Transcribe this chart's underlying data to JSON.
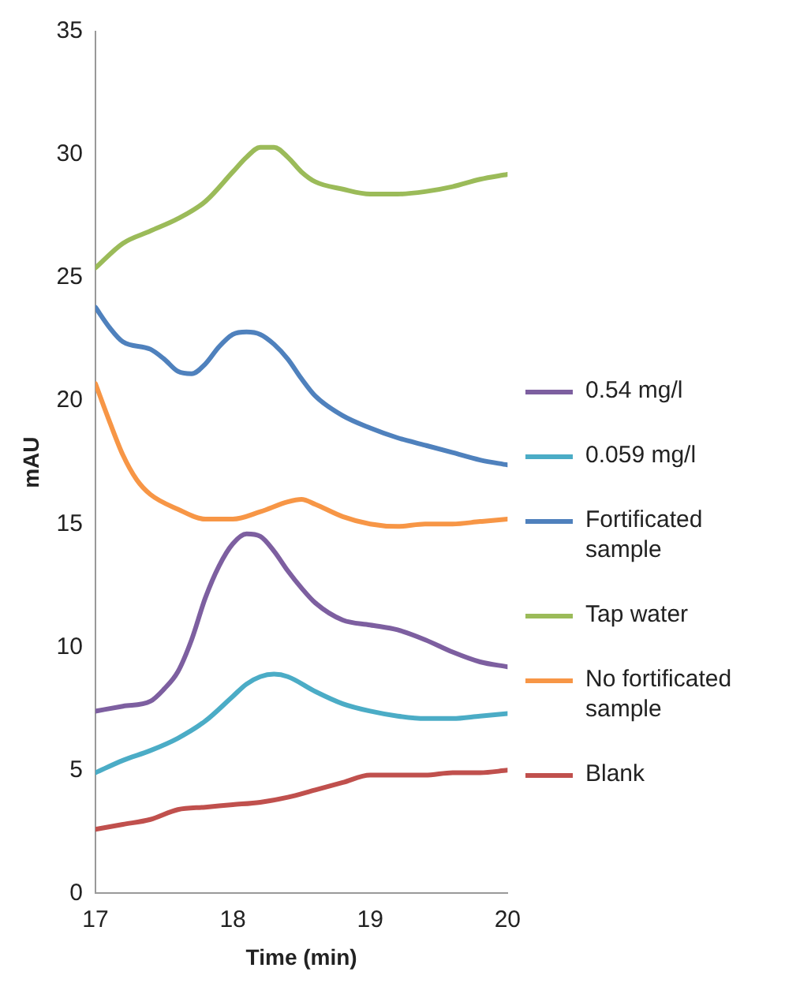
{
  "chart_data": {
    "type": "line",
    "xlabel": "Time (min)",
    "ylabel": "mAU",
    "xlim": [
      17,
      20
    ],
    "xticks": [
      17,
      18,
      19,
      20
    ],
    "ylim": [
      0,
      35
    ],
    "yticks": [
      0,
      5,
      10,
      15,
      20,
      25,
      30,
      35
    ],
    "grid": false,
    "legend": "right",
    "marker": "none",
    "line_style": "solid",
    "series": [
      {
        "name": "0.54 mg/l",
        "color": "#7d5fa0",
        "x": [
          17,
          17.2,
          17.4,
          17.5,
          17.6,
          17.7,
          17.8,
          17.9,
          18,
          18.1,
          18.2,
          18.3,
          18.4,
          18.5,
          18.6,
          18.8,
          19,
          19.2,
          19.4,
          19.6,
          19.8,
          20
        ],
        "values": [
          7.4,
          7.6,
          7.8,
          8.3,
          9,
          10.3,
          12,
          13.3,
          14.2,
          14.6,
          14.5,
          13.9,
          13.1,
          12.4,
          11.8,
          11.1,
          10.9,
          10.7,
          10.3,
          9.8,
          9.4,
          9.2
        ]
      },
      {
        "name": "0.059 mg/l",
        "color": "#4bacc6",
        "x": [
          17,
          17.2,
          17.4,
          17.6,
          17.8,
          18,
          18.1,
          18.2,
          18.3,
          18.4,
          18.6,
          18.8,
          19,
          19.2,
          19.4,
          19.6,
          19.8,
          20
        ],
        "values": [
          4.9,
          5.4,
          5.8,
          6.3,
          7,
          8,
          8.5,
          8.8,
          8.9,
          8.8,
          8.2,
          7.7,
          7.4,
          7.2,
          7.1,
          7.1,
          7.2,
          7.3
        ]
      },
      {
        "name": "Fortificated sample",
        "color": "#4f81bd",
        "x": [
          17,
          17.1,
          17.2,
          17.4,
          17.5,
          17.6,
          17.7,
          17.8,
          17.9,
          18,
          18.1,
          18.2,
          18.3,
          18.4,
          18.5,
          18.6,
          18.8,
          19,
          19.2,
          19.4,
          19.6,
          19.8,
          20
        ],
        "values": [
          23.8,
          23,
          22.4,
          22.1,
          21.7,
          21.2,
          21.1,
          21.5,
          22.2,
          22.7,
          22.8,
          22.7,
          22.3,
          21.7,
          20.9,
          20.2,
          19.4,
          18.9,
          18.5,
          18.2,
          17.9,
          17.6,
          17.4
        ]
      },
      {
        "name": "Tap water",
        "color": "#9bbb59",
        "x": [
          17,
          17.2,
          17.4,
          17.6,
          17.8,
          18,
          18.1,
          18.2,
          18.3,
          18.4,
          18.5,
          18.6,
          18.8,
          19,
          19.2,
          19.4,
          19.6,
          19.8,
          20
        ],
        "values": [
          25.4,
          26.4,
          26.9,
          27.4,
          28.1,
          29.3,
          29.9,
          30.3,
          30.3,
          29.9,
          29.3,
          28.9,
          28.6,
          28.4,
          28.4,
          28.5,
          28.7,
          29,
          29.2
        ]
      },
      {
        "name": "No fortificated sample",
        "color": "#f79646",
        "x": [
          17,
          17.1,
          17.2,
          17.3,
          17.4,
          17.6,
          17.8,
          18,
          18.2,
          18.4,
          18.5,
          18.6,
          18.8,
          19,
          19.2,
          19.4,
          19.6,
          19.8,
          20
        ],
        "values": [
          20.7,
          19.2,
          17.8,
          16.8,
          16.2,
          15.6,
          15.2,
          15.2,
          15.5,
          15.9,
          16,
          15.8,
          15.3,
          15,
          14.9,
          15,
          15,
          15.1,
          15.2
        ]
      },
      {
        "name": "Blank",
        "color": "#c0504d",
        "x": [
          17,
          17.2,
          17.4,
          17.6,
          17.8,
          18,
          18.2,
          18.4,
          18.6,
          18.8,
          19,
          19.2,
          19.4,
          19.6,
          19.8,
          20
        ],
        "values": [
          2.6,
          2.8,
          3,
          3.4,
          3.5,
          3.6,
          3.7,
          3.9,
          4.2,
          4.5,
          4.8,
          4.8,
          4.8,
          4.9,
          4.9,
          5
        ]
      }
    ]
  }
}
